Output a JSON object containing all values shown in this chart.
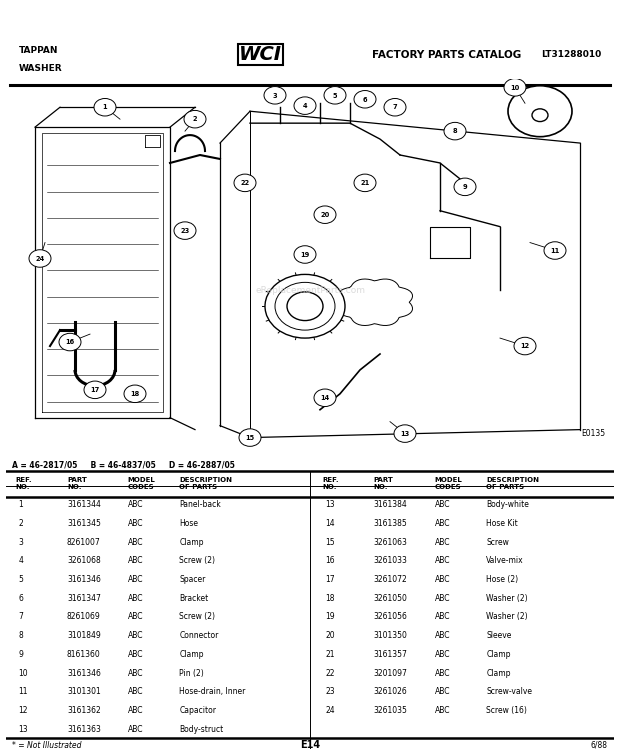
{
  "title_left1": "TAPPAN",
  "title_left2": "WASHER",
  "title_center": "FACTORY PARTS CATALOG",
  "title_wci": "WCI",
  "title_right": "LT31288010",
  "model_line": "A = 46-2817/05     B = 46-4837/05     D = 46-2887/05",
  "diagram_id": "E0135",
  "page_id": "E14",
  "date": "6/88",
  "footnote": "* = Not Illustrated",
  "watermark": "eReplacementParts.com",
  "col_headers_left": [
    "REF.\nNO.",
    "PART\nNO.",
    "MODEL\nCODES",
    "DESCRIPTION\nOF PARTS"
  ],
  "col_headers_right": [
    "REF.\nNO.",
    "PART\nNO.",
    "MODEL\nCODES",
    "DESCRIPTION\nOF PARTS"
  ],
  "parts_left": [
    [
      "1",
      "3161344",
      "ABC",
      "Panel-back"
    ],
    [
      "2",
      "3161345",
      "ABC",
      "Hose"
    ],
    [
      "3",
      "8261007",
      "ABC",
      "Clamp"
    ],
    [
      "4",
      "3261068",
      "ABC",
      "Screw (2)"
    ],
    [
      "5",
      "3161346",
      "ABC",
      "Spacer"
    ],
    [
      "6",
      "3161347",
      "ABC",
      "Bracket"
    ],
    [
      "7",
      "8261069",
      "ABC",
      "Screw (2)"
    ],
    [
      "8",
      "3101849",
      "ABC",
      "Connector"
    ],
    [
      "9",
      "8161360",
      "ABC",
      "Clamp"
    ],
    [
      "10",
      "3161346",
      "ABC",
      "Pin (2)"
    ],
    [
      "11",
      "3101301",
      "ABC",
      "Hose-drain, Inner"
    ],
    [
      "12",
      "3161362",
      "ABC",
      "Capacitor"
    ],
    [
      "13",
      "3161363",
      "ABC",
      "Body-struct"
    ]
  ],
  "parts_right": [
    [
      "13",
      "3161384",
      "ABC",
      "Body-white"
    ],
    [
      "14",
      "3161385",
      "ABC",
      "Hose Kit"
    ],
    [
      "15",
      "3261063",
      "ABC",
      "Screw"
    ],
    [
      "16",
      "3261033",
      "ABC",
      "Valve-mix"
    ],
    [
      "17",
      "3261072",
      "ABC",
      "Hose (2)"
    ],
    [
      "18",
      "3261050",
      "ABC",
      "Washer (2)"
    ],
    [
      "19",
      "3261056",
      "ABC",
      "Washer (2)"
    ],
    [
      "20",
      "3101350",
      "ABC",
      "Sleeve"
    ],
    [
      "21",
      "3161357",
      "ABC",
      "Clamp"
    ],
    [
      "22",
      "3201097",
      "ABC",
      "Clamp"
    ],
    [
      "23",
      "3261026",
      "ABC",
      "Screw-valve"
    ],
    [
      "24",
      "3261035",
      "ABC",
      "Screw (16)"
    ]
  ]
}
